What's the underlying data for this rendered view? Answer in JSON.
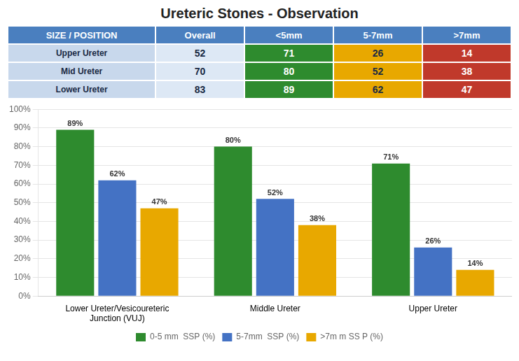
{
  "chart_data": [
    {
      "type": "table",
      "columns": [
        "SIZE / POSITION",
        "Overall",
        "<5mm",
        "5-7mm",
        ">7mm"
      ],
      "rows": [
        [
          "Upper Ureter",
          52,
          71,
          26,
          14
        ],
        [
          "Mid Ureter",
          70,
          80,
          52,
          38
        ],
        [
          "Lower Ureter",
          83,
          89,
          62,
          47
        ]
      ],
      "colors": [
        "#c8d8ec",
        "#dde8f5",
        "#2e8b2e",
        "#e8a800",
        "#c0392b"
      ]
    },
    {
      "type": "bar",
      "title": "Ureteric Stones - Observation",
      "categories": [
        "Lower Ureter/Vesicoureteric\nJunction (VUJ)",
        "Middle Ureter",
        "Upper Ureter"
      ],
      "series": [
        {
          "name": "0-5 mm  SSP (%)",
          "color": "#2e8b2e",
          "values": [
            89,
            80,
            71
          ],
          "value_labels": [
            "89%",
            "80%",
            "71%"
          ]
        },
        {
          "name": "5-7mm  SSP (%)",
          "color": "#4472c4",
          "values": [
            62,
            52,
            26
          ],
          "value_labels": [
            "62%",
            "52%",
            "26%"
          ]
        },
        {
          "name": ">7m m SS P (%)",
          "color": "#e8a800",
          "values": [
            47,
            38,
            14
          ],
          "value_labels": [
            "47%",
            "38%",
            "14%"
          ]
        }
      ],
      "ylim": [
        0,
        100
      ],
      "yticks": [
        {
          "value": 0,
          "label": "0%"
        },
        {
          "value": 10,
          "label": "10%"
        },
        {
          "value": 20,
          "label": "20%"
        },
        {
          "value": 30,
          "label": "30%"
        },
        {
          "value": 40,
          "label": "40%"
        },
        {
          "value": 50,
          "label": "50%"
        },
        {
          "value": 60,
          "label": "60%"
        },
        {
          "value": 70,
          "label": "70%"
        },
        {
          "value": 80,
          "label": "80%"
        },
        {
          "value": 90,
          "label": "90%"
        },
        {
          "value": 100,
          "label": "100%"
        }
      ],
      "grid": true,
      "legend": "bottom",
      "data_labels": true
    }
  ]
}
